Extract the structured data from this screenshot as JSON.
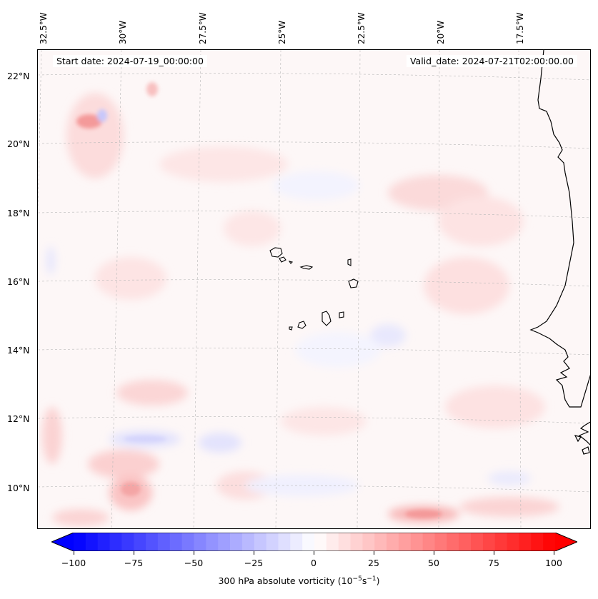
{
  "map": {
    "start_date": "Start date: 2024-07-19_00:00:00",
    "valid_date": "Valid_date: 2024-07-21T02:00:00.00",
    "lon_labels": [
      "32.5°W",
      "30°W",
      "27.5°W",
      "25°W",
      "22.5°W",
      "20°W",
      "17.5°W"
    ],
    "lat_labels": [
      "22°N",
      "20°N",
      "18°N",
      "16°N",
      "14°N",
      "12°N",
      "10°N"
    ],
    "field": "300 hPa absolute vorticity"
  },
  "colorbar": {
    "ticks": [
      "−100",
      "−75",
      "−50",
      "−25",
      "0",
      "25",
      "50",
      "75",
      "100"
    ],
    "label": "300 hPa absolute vorticity (10",
    "label_exp1": "−5",
    "label_mid": "s",
    "label_exp2": "−1",
    "label_end": ")",
    "vmin": -100,
    "vmax": 100,
    "neg_color": "#0000ff",
    "pos_color": "#ff0000"
  }
}
